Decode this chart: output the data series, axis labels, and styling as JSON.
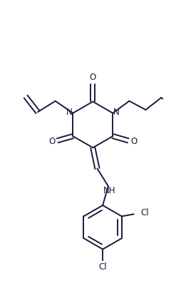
{
  "bg_color": "#ffffff",
  "line_color": "#1a1a3e",
  "line_width": 1.4,
  "font_size": 8.5,
  "figsize": [
    2.55,
    4.11
  ],
  "dpi": 100,
  "xlim": [
    0,
    255
  ],
  "ylim": [
    0,
    411
  ]
}
